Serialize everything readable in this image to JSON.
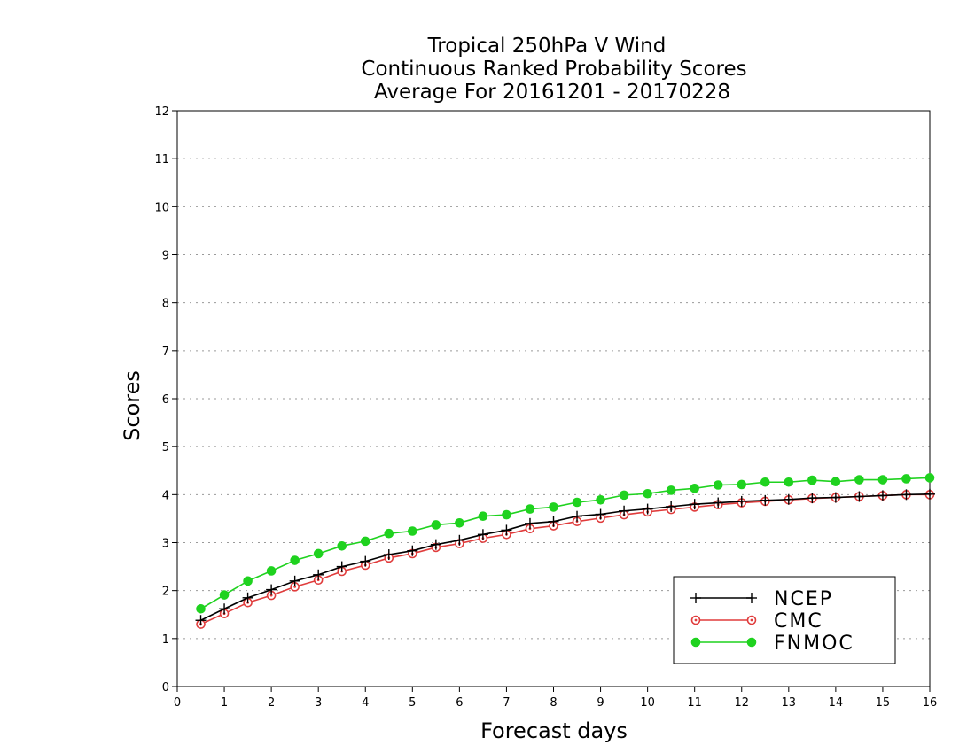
{
  "chart_data": {
    "type": "line",
    "title": [
      "Tropical 250hPa V Wind",
      "Continuous Ranked Probability Scores",
      "Average For 20161201 - 20170228"
    ],
    "xlabel": "Forecast days",
    "ylabel": "Scores",
    "xlim": [
      0,
      16
    ],
    "ylim": [
      0,
      12
    ],
    "xticks": [
      "0",
      "1",
      "2",
      "3",
      "4",
      "5",
      "6",
      "7",
      "8",
      "9",
      "10",
      "11",
      "12",
      "13",
      "14",
      "15",
      "16"
    ],
    "yticks": [
      "0",
      "1",
      "2",
      "3",
      "4",
      "5",
      "6",
      "7",
      "8",
      "9",
      "10",
      "11",
      "12"
    ],
    "grid": "horizontal dotted",
    "legend_position": "bottom-right",
    "x": [
      0.5,
      1,
      1.5,
      2,
      2.5,
      3,
      3.5,
      4,
      4.5,
      5,
      5.5,
      6,
      6.5,
      7,
      7.5,
      8,
      8.5,
      9,
      9.5,
      10,
      10.5,
      11,
      11.5,
      12,
      12.5,
      13,
      13.5,
      14,
      14.5,
      15,
      15.5,
      16
    ],
    "series": [
      {
        "name": "NCEP",
        "color": "#000000",
        "marker": "plus",
        "values": [
          1.38,
          1.62,
          1.85,
          2.02,
          2.2,
          2.33,
          2.5,
          2.61,
          2.75,
          2.83,
          2.96,
          3.05,
          3.17,
          3.26,
          3.4,
          3.44,
          3.55,
          3.59,
          3.66,
          3.7,
          3.75,
          3.8,
          3.83,
          3.86,
          3.88,
          3.9,
          3.93,
          3.94,
          3.96,
          3.98,
          4.0,
          4.01
        ]
      },
      {
        "name": "CMC",
        "color": "#e03c3c",
        "marker": "open-circle",
        "values": [
          1.3,
          1.52,
          1.75,
          1.9,
          2.08,
          2.22,
          2.4,
          2.53,
          2.68,
          2.77,
          2.9,
          2.98,
          3.09,
          3.17,
          3.29,
          3.35,
          3.44,
          3.51,
          3.58,
          3.64,
          3.69,
          3.74,
          3.79,
          3.83,
          3.86,
          3.89,
          3.92,
          3.94,
          3.96,
          3.98,
          4.0,
          4.0
        ]
      },
      {
        "name": "FNMOC",
        "color": "#1fd21f",
        "marker": "filled-circle",
        "values": [
          1.62,
          1.91,
          2.2,
          2.41,
          2.63,
          2.77,
          2.93,
          3.03,
          3.19,
          3.24,
          3.37,
          3.41,
          3.55,
          3.58,
          3.7,
          3.74,
          3.84,
          3.89,
          3.99,
          4.02,
          4.09,
          4.13,
          4.2,
          4.21,
          4.26,
          4.26,
          4.3,
          4.27,
          4.31,
          4.31,
          4.33,
          4.35
        ]
      }
    ]
  }
}
